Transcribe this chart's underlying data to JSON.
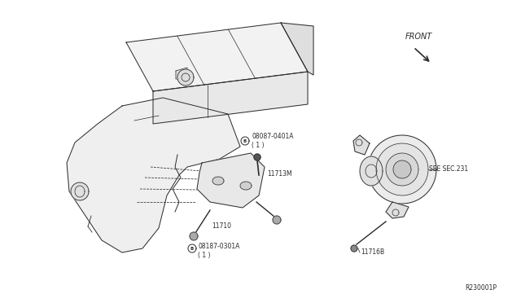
{
  "background_color": "#ffffff",
  "line_color": "#2a2a2a",
  "text_color": "#2a2a2a",
  "figsize": [
    6.4,
    3.72
  ],
  "dpi": 100,
  "labels": {
    "front": "FRONT",
    "part1": "08087-0401A\n( 1 )",
    "part2": "11713M",
    "part3": "11710",
    "part4": "08187-0301A\n( 1 )",
    "part5": "11716B",
    "see_sec": "SEE SEC.231",
    "ref": "R230001P"
  },
  "font_size_labels": 5.5,
  "font_size_ref": 5.5
}
